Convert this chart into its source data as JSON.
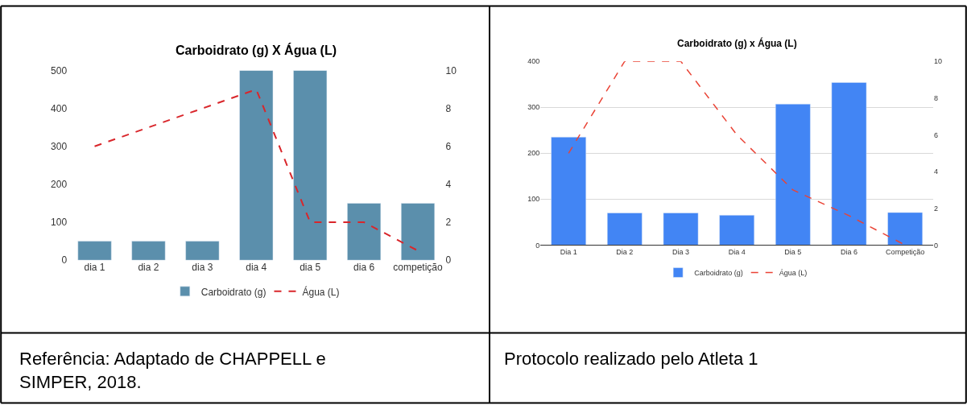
{
  "chart_data": [
    {
      "type": "bar",
      "title": "Carboidrato (g) X Água (L)",
      "categories": [
        "dia 1",
        "dia 2",
        "dia 3",
        "dia 4",
        "dia 5",
        "dia 6",
        "competição"
      ],
      "series": [
        {
          "name": "Carboidrato (g)",
          "color": "#5b8fac",
          "values": [
            50,
            50,
            50,
            500,
            500,
            150,
            150
          ]
        },
        {
          "name": "Água (L)",
          "type": "line",
          "axis": "y2",
          "color": "#d9262b",
          "line_style": "dashed",
          "marker": "none",
          "values": [
            6,
            7,
            8,
            9,
            2,
            2,
            0.5
          ]
        }
      ],
      "ylim": [
        0,
        500
      ],
      "yticks": [
        0,
        100,
        200,
        300,
        400,
        500
      ],
      "y2lim": [
        0,
        10
      ],
      "y2ticks": [
        0,
        2,
        4,
        6,
        8,
        10
      ],
      "grid": false,
      "legend": "bottom",
      "annotations": [
        "Referência: Adaptado de CHAPPELL e SIMPER, 2018."
      ]
    },
    {
      "type": "bar",
      "title": "Carboidrato (g) x Água (L)",
      "categories": [
        "Dia 1",
        "Dia 2",
        "Dia 3",
        "Dia 4",
        "Dia 5",
        "Dia 6",
        "Competição"
      ],
      "series": [
        {
          "name": "Carboidrato (g)",
          "color": "#4285f4",
          "values": [
            235,
            70,
            70,
            65,
            307,
            354,
            71
          ]
        },
        {
          "name": "Água (L)",
          "type": "line",
          "axis": "y2",
          "color": "#ea4335",
          "line_style": "dashed",
          "marker": "none",
          "values": [
            5,
            10,
            10,
            6,
            3,
            1.6,
            0
          ]
        }
      ],
      "ylim": [
        0,
        400
      ],
      "yticks": [
        0,
        100,
        200,
        300,
        400
      ],
      "y2lim": [
        0,
        10
      ],
      "y2ticks": [
        0,
        2,
        4,
        6,
        8,
        10
      ],
      "grid": "y",
      "legend": "bottom",
      "annotations": [
        "Protocolo realizado pelo Atleta 1"
      ]
    }
  ]
}
